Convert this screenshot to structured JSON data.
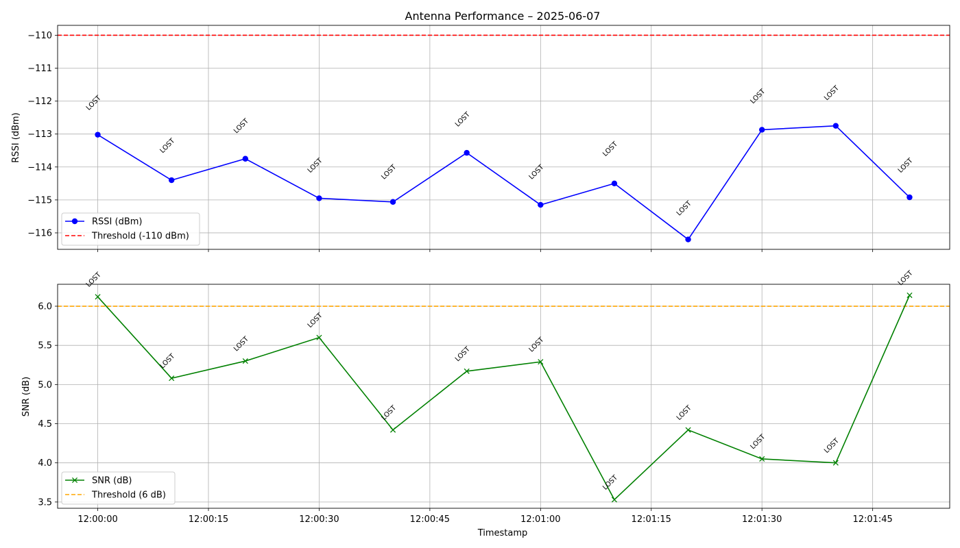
{
  "figure": {
    "title": "Antenna Performance – 2025-06-07",
    "xlabel": "Timestamp"
  },
  "chart_data": [
    {
      "type": "line",
      "ylabel": "RSSI (dBm)",
      "x": [
        "12:00:00",
        "12:00:10",
        "12:00:20",
        "12:00:30",
        "12:00:40",
        "12:00:50",
        "12:01:00",
        "12:01:10",
        "12:01:20",
        "12:01:30",
        "12:01:40",
        "12:01:50"
      ],
      "x_ticks": [
        "12:00:00",
        "12:00:15",
        "12:00:30",
        "12:00:45",
        "12:01:00",
        "12:01:15",
        "12:01:30",
        "12:01:45"
      ],
      "ylim": [
        -116.5,
        -109.7
      ],
      "y_ticks": [
        -116,
        -115,
        -114,
        -113,
        -112,
        -111,
        -110
      ],
      "y_tick_labels": [
        "−116",
        "−115",
        "−114",
        "−113",
        "−112",
        "−111",
        "−110"
      ],
      "series": [
        {
          "name": "RSSI (dBm)",
          "color": "#0000ff",
          "marker": "circle",
          "values": [
            -113.02,
            -114.4,
            -113.75,
            -114.95,
            -115.06,
            -113.57,
            -115.15,
            -114.5,
            -116.2,
            -112.87,
            -112.75,
            -114.92
          ]
        }
      ],
      "threshold": {
        "name": "Threshold (-110 dBm)",
        "value": -110,
        "color": "#ff0000"
      },
      "annotations": {
        "text": "LOST",
        "y": [
          -112.1,
          -113.4,
          -112.8,
          -114.0,
          -114.2,
          -112.6,
          -114.2,
          -113.5,
          -115.3,
          -111.9,
          -111.8,
          -114.0
        ]
      },
      "legend": "lower-left",
      "grid": true
    },
    {
      "type": "line",
      "ylabel": "SNR (dB)",
      "x": [
        "12:00:00",
        "12:00:10",
        "12:00:20",
        "12:00:30",
        "12:00:40",
        "12:00:50",
        "12:01:00",
        "12:01:10",
        "12:01:20",
        "12:01:30",
        "12:01:40",
        "12:01:50"
      ],
      "x_ticks": [
        "12:00:00",
        "12:00:15",
        "12:00:30",
        "12:00:45",
        "12:01:00",
        "12:01:15",
        "12:01:30",
        "12:01:45"
      ],
      "ylim": [
        3.42,
        6.28
      ],
      "y_ticks": [
        3.5,
        4.0,
        4.5,
        5.0,
        5.5,
        6.0
      ],
      "y_tick_labels": [
        "3.5",
        "4.0",
        "4.5",
        "5.0",
        "5.5",
        "6.0"
      ],
      "series": [
        {
          "name": "SNR (dB)",
          "color": "#008000",
          "marker": "x",
          "values": [
            6.12,
            5.08,
            5.3,
            5.6,
            4.42,
            5.17,
            5.29,
            3.53,
            4.42,
            4.05,
            4.0,
            6.14
          ]
        }
      ],
      "threshold": {
        "name": "Threshold (6 dB)",
        "value": 6.0,
        "color": "#ffa500"
      },
      "annotations": {
        "text": "LOST",
        "y": [
          6.32,
          5.28,
          5.5,
          5.8,
          4.62,
          5.37,
          5.49,
          3.73,
          4.62,
          4.25,
          4.2,
          6.34
        ]
      },
      "legend": "lower-left",
      "grid": true
    }
  ]
}
